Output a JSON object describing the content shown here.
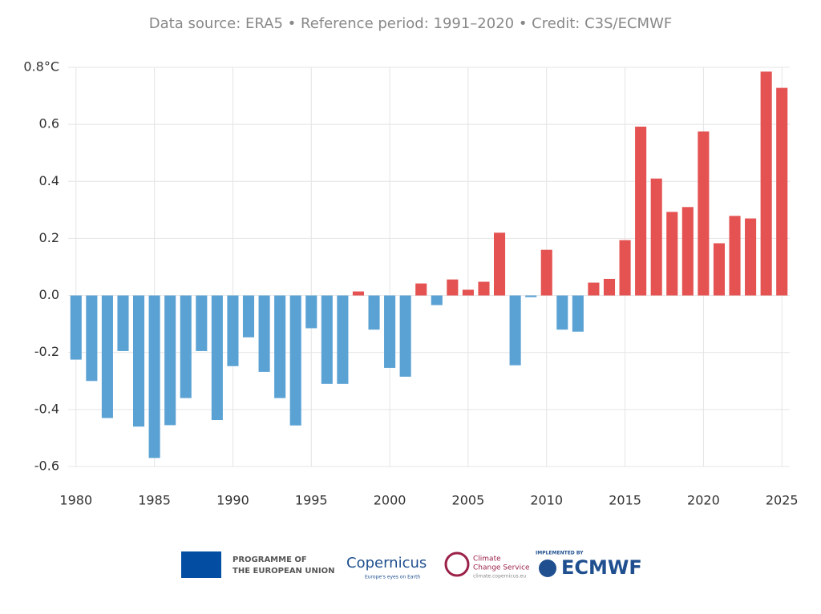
{
  "chart_data": {
    "type": "bar",
    "subtitle": "Data source: ERA5 • Reference period: 1991–2020 • Credit: C3S/ECMWF",
    "x": [
      1980,
      1981,
      1982,
      1983,
      1984,
      1985,
      1986,
      1987,
      1988,
      1989,
      1990,
      1991,
      1992,
      1993,
      1994,
      1995,
      1996,
      1997,
      1998,
      1999,
      2000,
      2001,
      2002,
      2003,
      2004,
      2005,
      2006,
      2007,
      2008,
      2009,
      2010,
      2011,
      2012,
      2013,
      2014,
      2015,
      2016,
      2017,
      2018,
      2019,
      2020,
      2021,
      2022,
      2023,
      2024,
      2025
    ],
    "values": [
      -0.225,
      -0.3,
      -0.43,
      -0.195,
      -0.46,
      -0.57,
      -0.455,
      -0.36,
      -0.195,
      -0.437,
      -0.248,
      -0.147,
      -0.268,
      -0.36,
      -0.456,
      -0.115,
      -0.31,
      -0.31,
      0.014,
      -0.12,
      -0.254,
      -0.285,
      0.042,
      -0.034,
      0.056,
      0.02,
      0.048,
      0.22,
      -0.245,
      -0.006,
      0.16,
      -0.12,
      -0.127,
      0.045,
      0.058,
      0.194,
      0.592,
      0.41,
      0.293,
      0.31,
      0.575,
      0.183,
      0.279,
      0.27,
      0.785,
      0.728
    ],
    "positive_color": "#e45252",
    "negative_color": "#5ba2d4",
    "xlim": [
      1979.5,
      2025.5
    ],
    "xticks": [
      1980,
      1985,
      1990,
      1995,
      2000,
      2005,
      2010,
      2015,
      2020,
      2025
    ],
    "ylim": [
      -0.6,
      0.8
    ],
    "yticks": [
      -0.6,
      -0.4,
      -0.2,
      {
        "value": 0,
        "label": "0.0"
      },
      0.2,
      0.4,
      0.6,
      {
        "value": 0.8,
        "label": "0.8°C"
      }
    ],
    "grid": true
  },
  "footer": {
    "eu": [
      "PROGRAMME OF",
      "THE EUROPEAN UNION"
    ],
    "copernicus": "Copernicus",
    "copernicus_tagline": "Europe's eyes on Earth",
    "c3s": [
      "Climate",
      "Change Service"
    ],
    "c3s_url": "climate.copernicus.eu",
    "implemented": "IMPLEMENTED BY",
    "ecmwf": "ECMWF"
  }
}
